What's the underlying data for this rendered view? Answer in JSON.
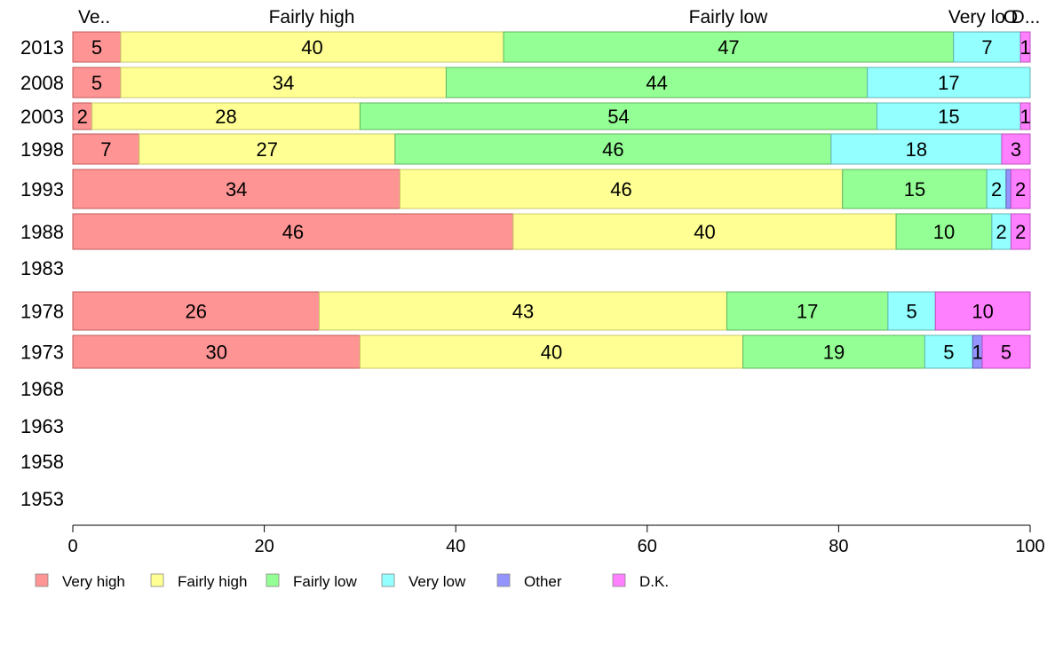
{
  "chart_data": {
    "type": "bar",
    "orientation": "horizontal",
    "stacked": true,
    "xlim": [
      0,
      100
    ],
    "x_ticks": [
      "0",
      "20",
      "40",
      "60",
      "80",
      "100"
    ],
    "categories": [
      "2013",
      "2008",
      "2003",
      "1998",
      "1993",
      "1988",
      "1983",
      "1978",
      "1973",
      "1968",
      "1963",
      "1958",
      "1953"
    ],
    "top_labels": [
      "Ve..",
      "Fairly high",
      "Fairly low",
      "Very lo",
      "O",
      "D..."
    ],
    "series": [
      {
        "name": "Very high",
        "color": "#ff9494",
        "values": [
          5,
          5,
          2,
          7,
          34,
          46,
          null,
          26,
          30,
          null,
          null,
          null,
          null
        ]
      },
      {
        "name": "Fairly high",
        "color": "#ffff94",
        "values": [
          40,
          34,
          28,
          27,
          46,
          40,
          null,
          43,
          40,
          null,
          null,
          null,
          null
        ]
      },
      {
        "name": "Fairly low",
        "color": "#94ff94",
        "values": [
          47,
          44,
          54,
          46,
          15,
          10,
          null,
          17,
          19,
          null,
          null,
          null,
          null
        ]
      },
      {
        "name": "Very low",
        "color": "#94ffff",
        "values": [
          7,
          17,
          15,
          18,
          2,
          2,
          null,
          5,
          5,
          null,
          null,
          null,
          null
        ]
      },
      {
        "name": "Other",
        "color": "#9494ff",
        "values": [
          0,
          0,
          0,
          0,
          0.5,
          0,
          null,
          0,
          1,
          null,
          null,
          null,
          null
        ]
      },
      {
        "name": "D.K.",
        "color": "#ff80ff",
        "values": [
          1,
          0,
          1,
          3,
          2,
          2,
          null,
          10,
          5,
          null,
          null,
          null,
          null
        ]
      }
    ],
    "data_labels": [
      [
        "5",
        "40",
        "47",
        "7",
        "",
        "1"
      ],
      [
        "5",
        "34",
        "44",
        "17",
        "",
        ""
      ],
      [
        "2",
        "28",
        "54",
        "15",
        "",
        "1"
      ],
      [
        "7",
        "27",
        "46",
        "18",
        "",
        "3"
      ],
      [
        "34",
        "46",
        "15",
        "2",
        "",
        "2"
      ],
      [
        "46",
        "40",
        "10",
        "2",
        "",
        "2"
      ],
      [],
      [
        "26",
        "43",
        "17",
        "5",
        "",
        "10"
      ],
      [
        "30",
        "40",
        "19",
        "5",
        "1",
        "5"
      ],
      [],
      [],
      [],
      []
    ],
    "legend_position": "bottom",
    "grid": false
  }
}
